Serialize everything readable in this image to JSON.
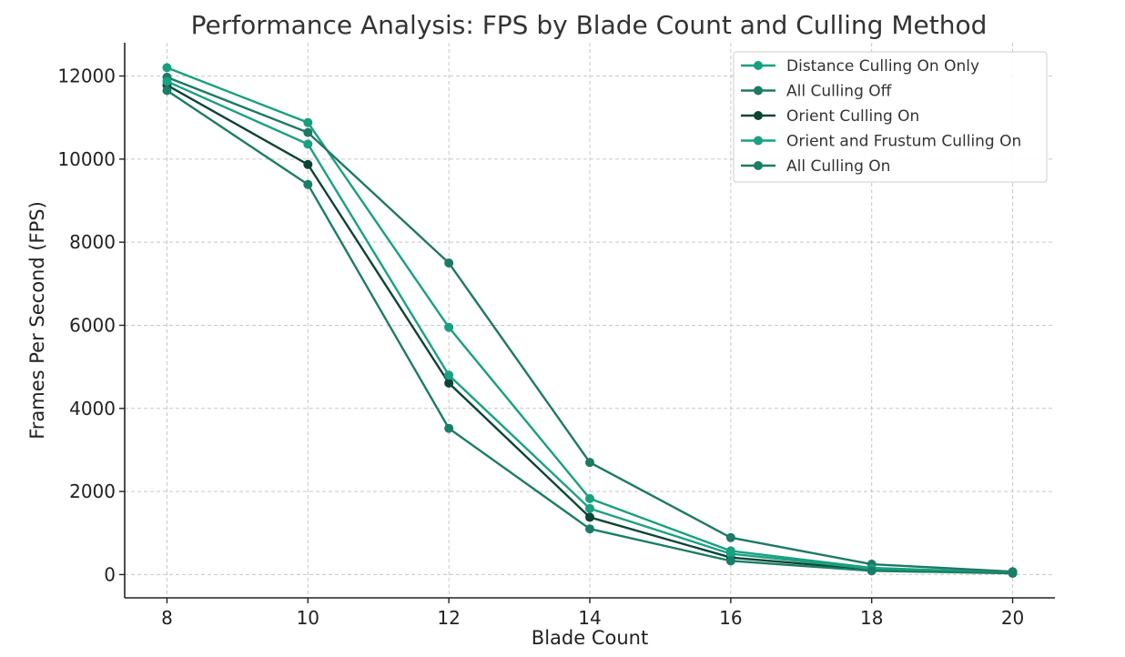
{
  "chart_data": {
    "type": "line",
    "title": "Performance Analysis: FPS by Blade Count and Culling Method",
    "xlabel": "Blade Count",
    "ylabel": "Frames Per Second (FPS)",
    "x": [
      8,
      10,
      12,
      14,
      16,
      18,
      20
    ],
    "xlim": [
      7.4,
      20.6
    ],
    "ylim": [
      -560,
      12800
    ],
    "xticks": [
      8,
      10,
      12,
      14,
      16,
      18,
      20
    ],
    "yticks": [
      0,
      2000,
      4000,
      6000,
      8000,
      10000,
      12000
    ],
    "grid": true,
    "legend_position": "top-right",
    "series": [
      {
        "name": "Distance Culling On Only",
        "color": "#17a07e",
        "values": [
          12200,
          10880,
          5950,
          1830,
          570,
          160,
          50
        ]
      },
      {
        "name": "All Culling Off",
        "color": "#1d7a64",
        "values": [
          11970,
          10640,
          7500,
          2700,
          890,
          250,
          70
        ]
      },
      {
        "name": "Orient Culling On",
        "color": "#0c4535",
        "values": [
          11780,
          9870,
          4610,
          1380,
          410,
          120,
          40
        ]
      },
      {
        "name": "Orient and Frustum Culling On",
        "color": "#19a182",
        "values": [
          11870,
          10360,
          4800,
          1590,
          500,
          140,
          40
        ]
      },
      {
        "name": "All Culling On",
        "color": "#1b7d66",
        "values": [
          11650,
          9390,
          3520,
          1100,
          330,
          90,
          30
        ]
      }
    ]
  }
}
